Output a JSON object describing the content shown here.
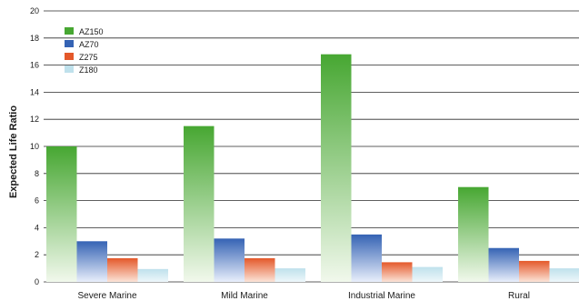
{
  "chart_data": {
    "type": "bar",
    "categories": [
      "Severe Marine",
      "Mild Marine",
      "Industrial Marine",
      "Rural"
    ],
    "series": [
      {
        "name": "AZ150",
        "values": [
          10.0,
          11.5,
          16.8,
          7.0
        ],
        "color_top": "#47a732",
        "color_bottom": "#f1f8ec"
      },
      {
        "name": "AZ70",
        "values": [
          3.0,
          3.2,
          3.5,
          2.5
        ],
        "color_top": "#3563b4",
        "color_bottom": "#e9effb"
      },
      {
        "name": "Z275",
        "values": [
          1.75,
          1.75,
          1.45,
          1.55
        ],
        "color_top": "#e4582a",
        "color_bottom": "#fbe4d8"
      },
      {
        "name": "Z180",
        "values": [
          0.95,
          1.0,
          1.1,
          1.0
        ],
        "color_top": "#bfe1ec",
        "color_bottom": "#eef7fa"
      }
    ],
    "xlabel": "",
    "ylabel": "Expected Life Ratio",
    "ylim": [
      0,
      20
    ],
    "yticks": [
      0,
      2,
      4,
      6,
      8,
      10,
      12,
      14,
      16,
      18,
      20
    ],
    "grid": true,
    "legend_position": "top-left"
  }
}
